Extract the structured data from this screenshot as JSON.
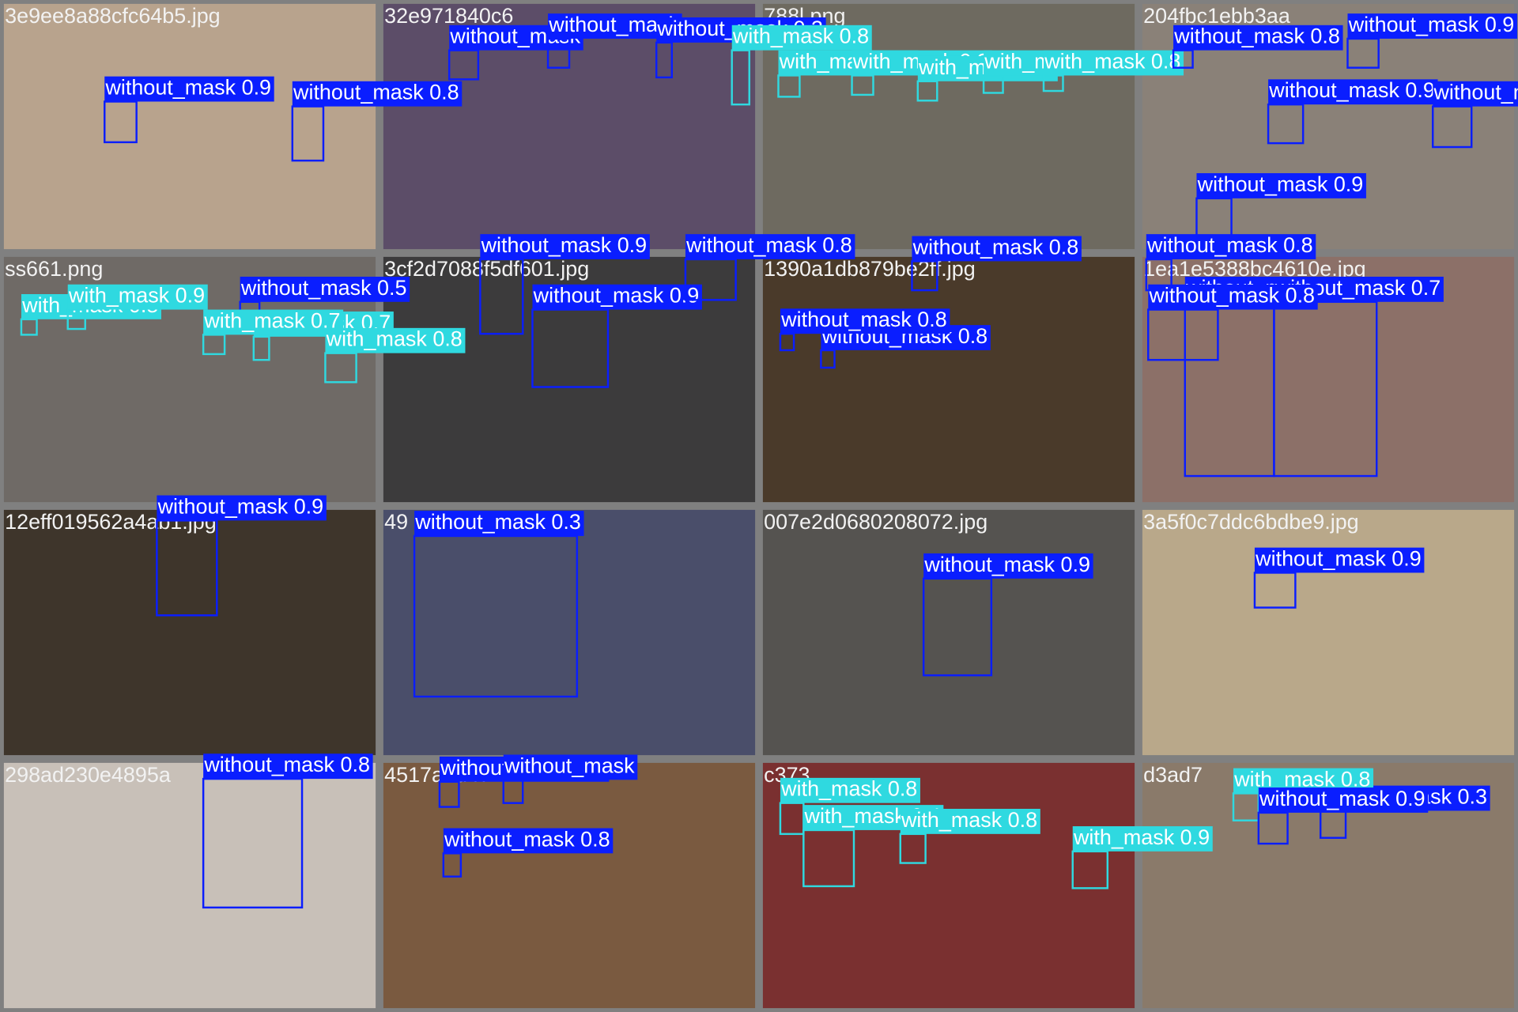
{
  "tiles": [
    {
      "filename": "3e9ee8a88cfc64b5.jpg",
      "detections": [
        {
          "label": "without_mask 0.9"
        },
        {
          "label": "without_mask 0.8"
        }
      ]
    },
    {
      "filename": "32e971840c6",
      "detections": [
        {
          "label": "without_mask"
        },
        {
          "label": "without_mask"
        },
        {
          "label": "without_mask 0.3"
        },
        {
          "label": "with_mask 0.8"
        }
      ]
    },
    {
      "filename": "788l.png",
      "detections": [
        {
          "label": "with_mask 0.8"
        },
        {
          "label": "with_mask 0.3"
        },
        {
          "label": "with_mask 0.8"
        },
        {
          "label": "with_mask 0.8"
        },
        {
          "label": "with_mask 0.8"
        }
      ]
    },
    {
      "filename": "204fbc1ebb3aa",
      "detections": [
        {
          "label": "without_mask 0.8"
        },
        {
          "label": "without_mask 0.9"
        },
        {
          "label": "without_mask 0.9"
        },
        {
          "label": "without_mask 0.9"
        },
        {
          "label": "without_mask 0.9"
        },
        {
          "label": "without_mask 0.8"
        }
      ]
    },
    {
      "filename": "ss661.png",
      "detections": [
        {
          "label": "with_mask 0.8"
        },
        {
          "label": "with_mask 0.9"
        },
        {
          "label": "without_mask 0.5"
        },
        {
          "label": "with_mask 0.7"
        },
        {
          "label": "with_mask 0.8"
        },
        {
          "label": "with_mask 0.7"
        }
      ]
    },
    {
      "filename": "3cf2d7088f5df601.jpg",
      "detections": [
        {
          "label": "without_mask 0.9"
        },
        {
          "label": "without_mask 0.9"
        },
        {
          "label": "without_mask 0.8"
        }
      ]
    },
    {
      "filename": "1390a1db879be2ff.jpg",
      "detections": [
        {
          "label": "without_mask 0.8"
        },
        {
          "label": "without_mask 0.8"
        },
        {
          "label": "without_mask 0.8"
        }
      ]
    },
    {
      "filename": "1ea1e5388bc4610e.jpg",
      "detections": [
        {
          "label": "without_mask 0.6"
        },
        {
          "label": "without_mask 0.7"
        },
        {
          "label": "without_mask 0.8"
        }
      ]
    },
    {
      "filename": "12eff019562a4ab1.jpg",
      "detections": [
        {
          "label": "without_mask 0.9"
        }
      ]
    },
    {
      "filename": "49",
      "detections": [
        {
          "label": "without_mask 0.3"
        }
      ]
    },
    {
      "filename": "007e2d0680208072.jpg",
      "detections": [
        {
          "label": "without_mask 0.9"
        }
      ]
    },
    {
      "filename": "3a5f0c7ddc6bdbe9.jpg",
      "detections": [
        {
          "label": "without_mask 0.9"
        }
      ]
    },
    {
      "filename": "298ad230e4895a",
      "detections": [
        {
          "label": "without_mask 0.8"
        }
      ]
    },
    {
      "filename": "4517aed47",
      "detections": [
        {
          "label": "without_mask 0.9"
        },
        {
          "label": "without_mask 0.8"
        },
        {
          "label": "without_mask"
        }
      ]
    },
    {
      "filename": "c373",
      "detections": [
        {
          "label": "with_mask 0.4"
        },
        {
          "label": "with_mask 0.9"
        },
        {
          "label": "with_mask 0.8"
        },
        {
          "label": "with_mask 0.8"
        }
      ]
    },
    {
      "filename": "d3ad7",
      "detections": [
        {
          "label": "without_mask 0.3"
        },
        {
          "label": "with_mask 0.8"
        },
        {
          "label": "without_mask 0.9"
        }
      ]
    }
  ]
}
